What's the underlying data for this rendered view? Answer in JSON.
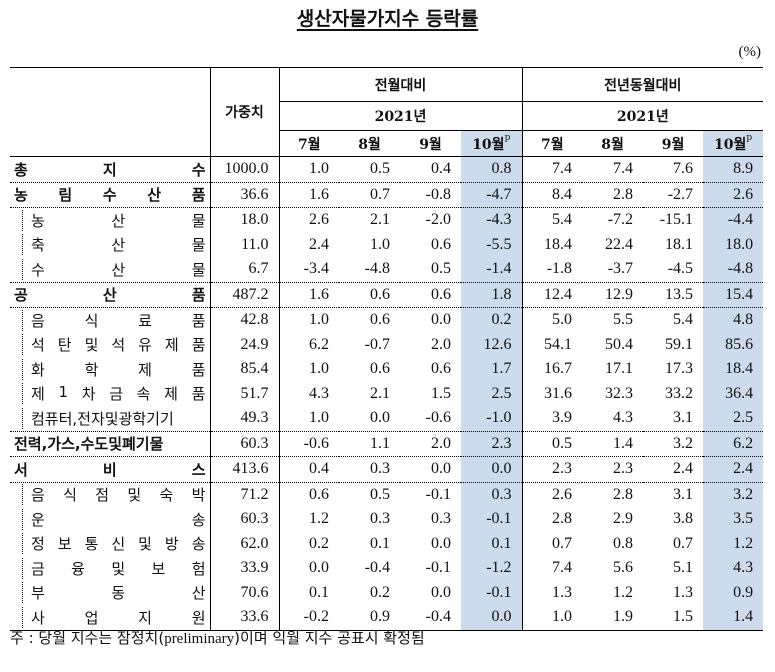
{
  "title": "생산자물가지수 등락률",
  "unit": "(%)",
  "header": {
    "weight_label": "가중치",
    "groups": [
      {
        "label": "전월대비",
        "year": "2021년",
        "months": [
          "7월",
          "8월",
          "9월",
          "10월"
        ],
        "highlight_index": 3
      },
      {
        "label": "전년동월대비",
        "year": "2021년",
        "months": [
          "7월",
          "8월",
          "9월",
          "10월"
        ],
        "highlight_index": 3
      }
    ],
    "preliminary_mark": "p"
  },
  "highlight_color": "#cddcec",
  "rows": [
    {
      "label": "총지수",
      "chars": [
        "총",
        "지",
        "수"
      ],
      "level": "main",
      "weight": "1000.0",
      "mom": [
        "1.0",
        "0.5",
        "0.4",
        "0.8"
      ],
      "yoy": [
        "7.4",
        "7.4",
        "7.6",
        "8.9"
      ]
    },
    {
      "label": "농림수산품",
      "chars": [
        "농",
        "림",
        "수",
        "산",
        "품"
      ],
      "level": "main",
      "weight": "36.6",
      "mom": [
        "1.6",
        "0.7",
        "-0.8",
        "-4.7"
      ],
      "yoy": [
        "8.4",
        "2.8",
        "-2.7",
        "2.6"
      ]
    },
    {
      "label": "농산물",
      "chars": [
        "농",
        "산",
        "물"
      ],
      "level": "sub",
      "weight": "18.0",
      "mom": [
        "2.6",
        "2.1",
        "-2.0",
        "-4.3"
      ],
      "yoy": [
        "5.4",
        "-7.2",
        "-15.1",
        "-4.4"
      ]
    },
    {
      "label": "축산물",
      "chars": [
        "축",
        "산",
        "물"
      ],
      "level": "sub",
      "weight": "11.0",
      "mom": [
        "2.4",
        "1.0",
        "0.6",
        "-5.5"
      ],
      "yoy": [
        "18.4",
        "22.4",
        "18.1",
        "18.0"
      ]
    },
    {
      "label": "수산물",
      "chars": [
        "수",
        "산",
        "물"
      ],
      "level": "sub",
      "weight": "6.7",
      "mom": [
        "-3.4",
        "-4.8",
        "0.5",
        "-1.4"
      ],
      "yoy": [
        "-1.8",
        "-3.7",
        "-4.5",
        "-4.8"
      ]
    },
    {
      "label": "공산품",
      "chars": [
        "공",
        "산",
        "품"
      ],
      "level": "main",
      "weight": "487.2",
      "mom": [
        "1.6",
        "0.6",
        "0.6",
        "1.8"
      ],
      "yoy": [
        "12.4",
        "12.9",
        "13.5",
        "15.4"
      ]
    },
    {
      "label": "음식료품",
      "chars": [
        "음",
        "식",
        "료",
        "품"
      ],
      "level": "sub",
      "weight": "42.8",
      "mom": [
        "1.0",
        "0.6",
        "0.0",
        "0.2"
      ],
      "yoy": [
        "5.0",
        "5.5",
        "5.4",
        "4.8"
      ]
    },
    {
      "label": "석탄및석유제품",
      "chars": [
        "석",
        "탄",
        "및",
        "석",
        "유",
        "제",
        "품"
      ],
      "level": "sub",
      "weight": "24.9",
      "mom": [
        "6.2",
        "-0.7",
        "2.0",
        "12.6"
      ],
      "yoy": [
        "54.1",
        "50.4",
        "59.1",
        "85.6"
      ]
    },
    {
      "label": "화학제품",
      "chars": [
        "화",
        "학",
        "제",
        "품"
      ],
      "level": "sub",
      "weight": "85.4",
      "mom": [
        "1.0",
        "0.6",
        "0.6",
        "1.7"
      ],
      "yoy": [
        "16.7",
        "17.1",
        "17.3",
        "18.4"
      ]
    },
    {
      "label": "제1차금속제품",
      "chars": [
        "제",
        "1",
        "차",
        "금",
        "속",
        "제",
        "품"
      ],
      "level": "sub",
      "weight": "51.7",
      "mom": [
        "4.3",
        "2.1",
        "1.5",
        "2.5"
      ],
      "yoy": [
        "31.6",
        "32.3",
        "33.2",
        "36.4"
      ]
    },
    {
      "label": "컴퓨터,전자및광학기기",
      "chars": [
        "컴퓨터,전자및광학기기"
      ],
      "level": "sub",
      "weight": "49.3",
      "mom": [
        "1.0",
        "0.0",
        "-0.6",
        "-1.0"
      ],
      "yoy": [
        "3.9",
        "4.3",
        "3.1",
        "2.5"
      ]
    },
    {
      "label": "전력,가스,수도및폐기물",
      "chars": [
        "전력,가스,수도및폐기물"
      ],
      "level": "main",
      "weight": "60.3",
      "mom": [
        "-0.6",
        "1.1",
        "2.0",
        "2.3"
      ],
      "yoy": [
        "0.5",
        "1.4",
        "3.2",
        "6.2"
      ]
    },
    {
      "label": "서비스",
      "chars": [
        "서",
        "비",
        "스"
      ],
      "level": "main",
      "weight": "413.6",
      "mom": [
        "0.4",
        "0.3",
        "0.0",
        "0.0"
      ],
      "yoy": [
        "2.3",
        "2.3",
        "2.4",
        "2.4"
      ]
    },
    {
      "label": "음식점및숙박",
      "chars": [
        "음",
        "식",
        "점",
        "및",
        "숙",
        "박"
      ],
      "level": "sub",
      "weight": "71.2",
      "mom": [
        "0.6",
        "0.5",
        "-0.1",
        "0.3"
      ],
      "yoy": [
        "2.6",
        "2.8",
        "3.1",
        "3.2"
      ]
    },
    {
      "label": "운송",
      "chars": [
        "운",
        "송"
      ],
      "level": "sub",
      "weight": "60.3",
      "mom": [
        "1.2",
        "0.3",
        "0.3",
        "-0.1"
      ],
      "yoy": [
        "2.8",
        "2.9",
        "3.8",
        "3.5"
      ]
    },
    {
      "label": "정보통신및방송",
      "chars": [
        "정",
        "보",
        "통",
        "신",
        "및",
        "방",
        "송"
      ],
      "level": "sub",
      "weight": "62.0",
      "mom": [
        "0.2",
        "0.1",
        "0.0",
        "0.1"
      ],
      "yoy": [
        "0.7",
        "0.8",
        "0.7",
        "1.2"
      ]
    },
    {
      "label": "금융및보험",
      "chars": [
        "금",
        "융",
        "및",
        "보",
        "험"
      ],
      "level": "sub",
      "weight": "33.9",
      "mom": [
        "0.0",
        "-0.4",
        "-0.1",
        "-1.2"
      ],
      "yoy": [
        "7.4",
        "5.6",
        "5.1",
        "4.3"
      ]
    },
    {
      "label": "부동산",
      "chars": [
        "부",
        "동",
        "산"
      ],
      "level": "sub",
      "weight": "70.6",
      "mom": [
        "0.1",
        "0.2",
        "0.0",
        "-0.1"
      ],
      "yoy": [
        "1.3",
        "1.2",
        "1.3",
        "0.9"
      ]
    },
    {
      "label": "사업지원",
      "chars": [
        "사",
        "업",
        "지",
        "원"
      ],
      "level": "sub",
      "weight": "33.6",
      "mom": [
        "-0.2",
        "0.9",
        "-0.4",
        "0.0"
      ],
      "yoy": [
        "1.0",
        "1.9",
        "1.5",
        "1.4"
      ]
    }
  ],
  "footnote": {
    "prefix": "주 : 당월 지수는 잠정치(",
    "english": "preliminary",
    "suffix": ")이며 익월 지수 공표시 확정됨"
  }
}
